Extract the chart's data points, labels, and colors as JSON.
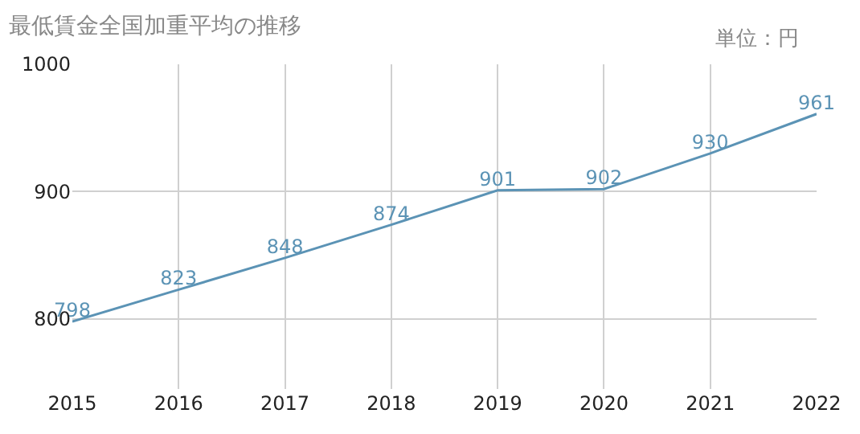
{
  "chart_data": {
    "type": "line",
    "title": "最低賃金全国加重平均の推移",
    "annotations": [
      "単位：円"
    ],
    "x": [
      2015,
      2016,
      2017,
      2018,
      2019,
      2020,
      2021,
      2022
    ],
    "series": [
      {
        "color": "#5b93b5",
        "values": [
          798,
          823,
          848,
          874,
          901,
          902,
          930,
          961
        ]
      }
    ],
    "xlim": [
      2015,
      2022
    ],
    "xticks": [
      2015,
      2016,
      2017,
      2018,
      2019,
      2020,
      2021,
      2022
    ],
    "ylim": [
      745,
      1000
    ],
    "yticks": [
      800,
      900,
      1000
    ],
    "grid": true,
    "data_labels": true,
    "marker": "none",
    "line_style": "solid"
  }
}
